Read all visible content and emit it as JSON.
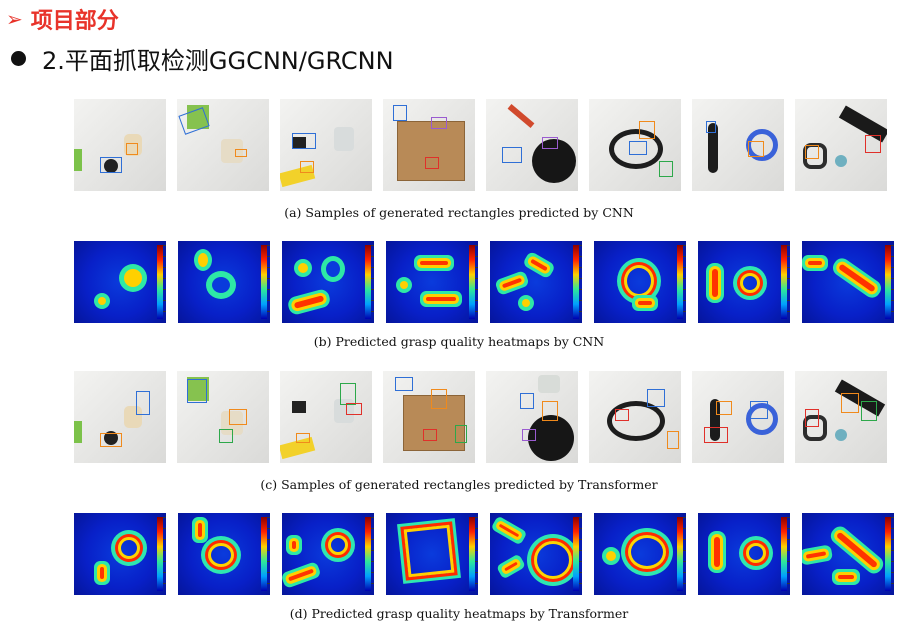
{
  "header": {
    "arrow_glyph": "➢",
    "title": "项目部分"
  },
  "subheader": {
    "text": "2.平面抓取检测GGCNN/GRCNN"
  },
  "captions": {
    "a": "(a)  Samples of generated rectangles predicted by CNN",
    "b": "(b)  Predicted grasp quality heatmaps by CNN",
    "c": "(c)  Samples of generated rectangles predicted by Transformer",
    "d": "(d)  Predicted grasp quality heatmaps by Transformer"
  },
  "colors": {
    "accent": "#e8332a",
    "rect_blue": "#2f6fd6",
    "rect_orange": "#f08a1c",
    "rect_red": "#e0302a",
    "rect_green": "#2da84a",
    "rect_purple": "#9a5bd0"
  }
}
